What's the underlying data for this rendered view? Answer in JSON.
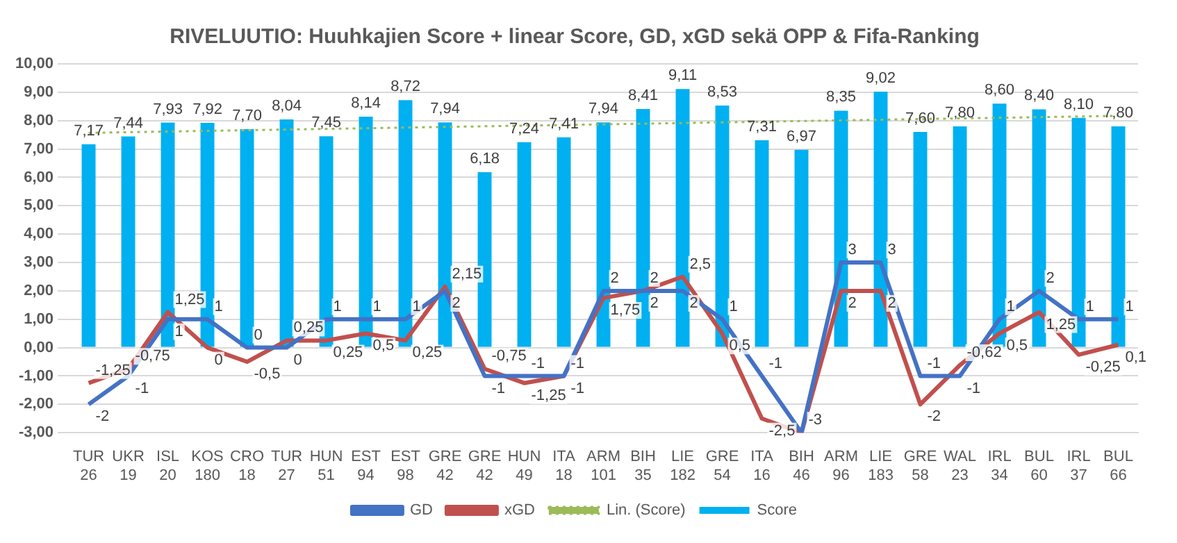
{
  "chart_data": {
    "type": "bar",
    "title": "RIVELUUTIO: Huuhkajien Score + linear Score, GD, xGD sekä OPP & Fifa-Ranking",
    "categories": [
      "TUR\n26",
      "UKR\n19",
      "ISL\n20",
      "KOS\n180",
      "CRO\n18",
      "TUR\n27",
      "HUN\n51",
      "EST\n94",
      "EST\n98",
      "GRE\n42",
      "GRE\n42",
      "HUN\n49",
      "ITA\n18",
      "ARM\n101",
      "BIH\n35",
      "LIE\n182",
      "GRE\n54",
      "ITA\n16",
      "BIH\n46",
      "ARM\n96",
      "LIE\n183",
      "GRE\n58",
      "WAL\n23",
      "IRL\n34",
      "BUL\n60",
      "IRL\n37",
      "BUL\n66"
    ],
    "series": [
      {
        "name": "Score",
        "color": "#00b0f0",
        "values": [
          7.17,
          7.44,
          7.93,
          7.92,
          7.7,
          8.04,
          7.45,
          8.14,
          8.72,
          7.94,
          6.18,
          7.24,
          7.41,
          7.94,
          8.41,
          9.11,
          8.53,
          7.31,
          6.97,
          8.35,
          9.02,
          7.6,
          7.8,
          8.6,
          8.4,
          8.1,
          7.8
        ],
        "value_labels": [
          "7,17",
          "7,44",
          "7,93",
          "7,92",
          "7,70",
          "8,04",
          "7,45",
          "8,14",
          "8,72",
          "7,94",
          "6,18",
          "7,24",
          "7,41",
          "7,94",
          "8,41",
          "9,11",
          "8,53",
          "7,31",
          "6,97",
          "8,35",
          "9,02",
          "7,60",
          "7,80",
          "8,60",
          "8,40",
          "8,10",
          "7,80"
        ]
      },
      {
        "name": "GD",
        "type": "line",
        "color": "#4472c4",
        "values": [
          -2,
          -1,
          1,
          1,
          0,
          0,
          1,
          1,
          1,
          2,
          -1,
          -1,
          -1,
          2,
          2,
          2,
          1,
          -1,
          -3,
          3,
          3,
          -1,
          -1,
          1,
          2,
          1,
          1
        ],
        "value_labels": [
          "-2",
          "-1",
          "1",
          "1",
          "0",
          "0",
          "1",
          "1",
          "1",
          "2",
          "-1",
          "-1",
          "-1",
          "2",
          "2",
          "2",
          "1",
          "-1",
          "-3",
          "3",
          "3",
          "-1",
          "-1",
          "1",
          "2",
          "1",
          "1"
        ]
      },
      {
        "name": "xGD",
        "type": "line",
        "color": "#c0504d",
        "values": [
          -1.25,
          -0.75,
          1.25,
          0,
          -0.5,
          0.25,
          0.25,
          0.5,
          0.25,
          2.15,
          -0.75,
          -1.25,
          -1,
          1.75,
          2,
          2.5,
          0.5,
          -2.5,
          -3,
          2,
          2,
          -2,
          -0.62,
          0.5,
          1.25,
          -0.25,
          0.1
        ],
        "value_labels": [
          "-1,25",
          "-0,75",
          "1,25",
          "0",
          "-0,5",
          "0,25",
          "0,25",
          "0,5",
          "0,25",
          "2,15",
          "-0,75",
          "-1,25",
          "-1",
          "1,75",
          "2",
          "2,5",
          "0,5",
          "-2,5",
          null,
          "2",
          "2",
          "-2",
          "-0,62",
          "0,5",
          "1,25",
          "-0,25",
          "0,1"
        ]
      },
      {
        "name": "Lin. (Score)",
        "type": "line",
        "color": "#9bbb59",
        "line_style": "dotted",
        "values": [
          7.57,
          null,
          null,
          null,
          null,
          null,
          null,
          null,
          null,
          null,
          null,
          null,
          null,
          null,
          null,
          null,
          null,
          null,
          null,
          null,
          null,
          null,
          null,
          null,
          null,
          null,
          8.17
        ]
      }
    ],
    "ylim": [
      -3,
      10
    ],
    "yticks": [
      {
        "value": -3,
        "label": "-3,00"
      },
      {
        "value": -2,
        "label": "-2,00"
      },
      {
        "value": -1,
        "label": "-1,00"
      },
      {
        "value": 0,
        "label": "0,00"
      },
      {
        "value": 1,
        "label": "1,00"
      },
      {
        "value": 2,
        "label": "2,00"
      },
      {
        "value": 3,
        "label": "3,00"
      },
      {
        "value": 4,
        "label": "4,00"
      },
      {
        "value": 5,
        "label": "5,00"
      },
      {
        "value": 6,
        "label": "6,00"
      },
      {
        "value": 7,
        "label": "7,00"
      },
      {
        "value": 8,
        "label": "8,00"
      },
      {
        "value": 9,
        "label": "9,00"
      },
      {
        "value": 10,
        "label": "10,00"
      }
    ],
    "grid": "y",
    "legend": "bottom",
    "marker": "none"
  }
}
